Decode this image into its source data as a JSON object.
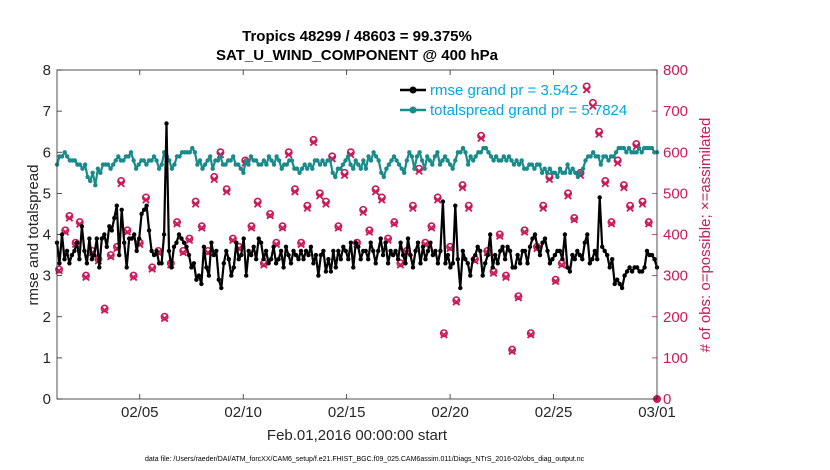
{
  "chart_data": {
    "type": "line",
    "title": "Tropics 48299 / 48603 = 99.375%",
    "subtitle": "SAT_U_WIND_COMPONENT @ 400 hPa",
    "xlabel": "Feb.01,2016 00:00:00 start",
    "ylabel": "rmse and totalspread",
    "y2label": "# of obs: o=possible; ×=assimilated",
    "footer": "data file: /Users/raeder/DAI/ATM_forcXX/CAM6_setup/f.e21.FHIST_BGC.f09_025.CAM6assim.011/Diags_NTrS_2016-02/obs_diag_output.nc",
    "xlim": [
      1,
      30
    ],
    "ylim": [
      0,
      8
    ],
    "y2lim": [
      0,
      800
    ],
    "xticks": [
      5,
      10,
      15,
      20,
      25,
      30
    ],
    "xtick_labels": [
      "02/05",
      "02/10",
      "02/15",
      "02/20",
      "02/25",
      "03/01"
    ],
    "yticks": [
      0,
      1,
      2,
      3,
      4,
      5,
      6,
      7,
      8
    ],
    "y2ticks": [
      0,
      100,
      200,
      300,
      400,
      500,
      600,
      700,
      800
    ],
    "legend_placement": "top-right",
    "series": [
      {
        "name": "rmse grand pr = 3.542",
        "color": "#000000",
        "role": "rmse",
        "values": [
          3.8,
          3.3,
          4.0,
          3.4,
          3.6,
          3.3,
          3.5,
          3.6,
          3.8,
          3.4,
          4.2,
          3.6,
          3.3,
          3.9,
          3.4,
          3.5,
          3.9,
          3.2,
          3.9,
          4.0,
          3.7,
          4.2,
          4.1,
          4.4,
          4.7,
          3.5,
          4.6,
          3.8,
          3.2,
          3.9,
          3.9,
          4.0,
          3.6,
          3.9,
          4.5,
          4.6,
          4.7,
          4.1,
          3.6,
          3.5,
          3.6,
          3.3,
          3.3,
          4.0,
          6.7,
          3.6,
          3.2,
          3.7,
          3.8,
          4.0,
          3.9,
          3.8,
          3.7,
          3.5,
          3.2,
          3.3,
          2.9,
          3.0,
          2.8,
          3.7,
          3.2,
          3.0,
          3.8,
          3.5,
          3.6,
          2.9,
          2.7,
          3.3,
          3.6,
          3.4,
          3.0,
          3.2,
          3.8,
          3.4,
          3.5,
          3.9,
          3.0,
          3.6,
          3.5,
          3.7,
          3.4,
          3.9,
          3.8,
          3.4,
          3.6,
          3.3,
          3.4,
          3.7,
          3.3,
          3.4,
          3.6,
          3.2,
          3.7,
          3.5,
          3.3,
          3.6,
          3.5,
          3.4,
          3.6,
          3.4,
          3.6,
          3.5,
          3.7,
          3.3,
          3.5,
          3.0,
          3.5,
          3.6,
          3.1,
          3.4,
          3.1,
          3.6,
          3.2,
          3.6,
          3.4,
          3.7,
          3.6,
          3.4,
          3.8,
          3.2,
          3.8,
          3.7,
          3.4,
          3.6,
          3.6,
          3.4,
          3.8,
          3.6,
          3.3,
          3.6,
          3.9,
          3.5,
          3.8,
          3.3,
          3.6,
          3.5,
          3.6,
          3.4,
          3.8,
          3.5,
          3.3,
          3.9,
          3.5,
          3.2,
          3.6,
          3.8,
          3.3,
          3.7,
          3.4,
          3.6,
          3.8,
          3.5,
          3.6,
          3.3,
          3.6,
          4.8,
          3.3,
          3.5,
          3.2,
          3.3,
          4.7,
          3.4,
          2.7,
          3.6,
          3.4,
          3.3,
          3.0,
          3.4,
          3.5,
          3.7,
          3.6,
          3.0,
          3.3,
          3.5,
          4.0,
          3.2,
          3.5,
          3.3,
          3.6,
          3.7,
          3.4,
          3.7,
          3.6,
          3.2,
          3.2,
          3.5,
          3.3,
          3.6,
          3.6,
          3.3,
          3.7,
          3.9,
          4.0,
          3.7,
          3.5,
          3.8,
          3.9,
          3.6,
          3.3,
          3.4,
          3.5,
          3.6,
          3.6,
          3.4,
          4.0,
          3.2,
          3.1,
          3.5,
          3.4,
          3.6,
          3.5,
          3.4,
          3.8,
          4.0,
          3.3,
          3.4,
          3.6,
          3.4,
          4.9,
          3.7,
          3.6,
          3.5,
          3.2,
          3.4,
          2.8,
          2.9,
          2.8,
          2.7,
          3.0,
          3.1,
          3.2,
          3.1,
          3.2,
          3.2,
          3.1,
          3.1,
          3.2,
          3.6,
          3.5,
          3.5,
          3.4,
          3.2
        ]
      },
      {
        "name": "totalspread grand pr = 5.7824",
        "color": "#1a8a8a",
        "role": "spread",
        "values": [
          5.7,
          5.9,
          5.9,
          6.0,
          5.9,
          5.8,
          5.8,
          5.8,
          5.7,
          5.7,
          5.6,
          5.7,
          5.4,
          5.3,
          5.5,
          5.2,
          5.6,
          5.5,
          5.7,
          5.7,
          5.7,
          5.6,
          5.7,
          5.8,
          5.9,
          5.8,
          5.8,
          5.9,
          5.9,
          6.0,
          5.8,
          5.6,
          5.7,
          5.8,
          5.8,
          5.7,
          5.8,
          5.8,
          5.9,
          5.8,
          5.6,
          5.7,
          6.0,
          5.9,
          5.8,
          5.6,
          5.7,
          5.9,
          5.9,
          6.0,
          6.0,
          6.0,
          6.0,
          6.1,
          6.0,
          5.7,
          5.8,
          5.6,
          5.7,
          5.8,
          5.9,
          5.6,
          5.8,
          5.8,
          5.9,
          5.7,
          5.7,
          5.8,
          5.8,
          5.9,
          5.7,
          5.7,
          5.6,
          5.5,
          5.8,
          5.7,
          5.9,
          5.8,
          5.8,
          5.7,
          5.7,
          5.8,
          5.7,
          5.9,
          5.8,
          5.7,
          5.9,
          5.8,
          5.6,
          5.7,
          5.7,
          5.8,
          5.8,
          5.6,
          5.6,
          5.5,
          5.6,
          5.7,
          5.6,
          5.7,
          5.6,
          5.8,
          5.8,
          5.7,
          5.8,
          5.7,
          5.8,
          5.8,
          5.5,
          5.4,
          5.6,
          5.6,
          5.7,
          5.8,
          5.9,
          5.7,
          5.6,
          5.8,
          5.7,
          5.6,
          5.8,
          5.6,
          5.9,
          5.8,
          6.0,
          5.9,
          5.8,
          5.5,
          5.4,
          5.6,
          5.7,
          5.8,
          5.9,
          5.8,
          5.7,
          5.6,
          5.5,
          5.8,
          6.0,
          5.9,
          5.6,
          5.9,
          6.0,
          5.8,
          5.6,
          5.9,
          5.8,
          5.7,
          5.9,
          6.0,
          5.7,
          5.8,
          5.9,
          5.8,
          5.7,
          5.6,
          5.8,
          6.0,
          6.0,
          6.1,
          6.0,
          5.7,
          5.9,
          5.8,
          5.9,
          6.0,
          6.0,
          6.1,
          6.1,
          6.0,
          5.9,
          5.8,
          5.9,
          5.8,
          5.8,
          5.9,
          5.8,
          5.9,
          5.8,
          5.7,
          5.8,
          5.7,
          5.8,
          5.6,
          5.6,
          5.7,
          5.7,
          5.6,
          5.7,
          5.7,
          5.5,
          5.6,
          5.5,
          5.6,
          5.5,
          5.5,
          5.4,
          5.6,
          5.5,
          5.5,
          5.7,
          5.5,
          5.6,
          5.5,
          5.4,
          5.5,
          5.6,
          5.8,
          5.9,
          5.9,
          6.0,
          5.9,
          5.9,
          5.7,
          5.9,
          5.9,
          5.8,
          5.9,
          5.9,
          6.0,
          6.1,
          6.1,
          6.1,
          6.0,
          6.1,
          6.0,
          6.0,
          6.0,
          6.1,
          6.0,
          6.1,
          6.1,
          6.1,
          6.1,
          6.0,
          6.0
        ]
      }
    ],
    "obs_possible": {
      "name": "possible",
      "color": "#c91a5a",
      "x": [
        1.1,
        1.4,
        1.6,
        1.9,
        2.1,
        2.4,
        2.7,
        3.0,
        3.3,
        3.6,
        3.9,
        4.1,
        4.4,
        4.7,
        5.0,
        5.3,
        5.6,
        5.9,
        6.2,
        6.5,
        6.8,
        7.1,
        7.4,
        7.7,
        8.0,
        8.3,
        8.6,
        8.9,
        9.2,
        9.5,
        9.8,
        10.1,
        10.4,
        10.7,
        11.0,
        11.3,
        11.6,
        11.9,
        12.2,
        12.5,
        12.8,
        13.1,
        13.4,
        13.7,
        14.0,
        14.3,
        14.6,
        14.9,
        15.2,
        15.5,
        15.8,
        16.1,
        16.4,
        16.7,
        17.0,
        17.3,
        17.6,
        17.9,
        18.2,
        18.5,
        18.8,
        19.1,
        19.4,
        19.7,
        20.0,
        20.3,
        20.6,
        20.9,
        21.2,
        21.5,
        21.8,
        22.1,
        22.4,
        22.7,
        23.0,
        23.3,
        23.6,
        23.9,
        24.2,
        24.5,
        24.8,
        25.1,
        25.4,
        25.7,
        26.0,
        26.3,
        26.6,
        26.9,
        27.2,
        27.5,
        27.8,
        28.1,
        28.4,
        28.7,
        29.0,
        29.3,
        29.6
      ],
      "counts": [
        315,
        410,
        445,
        380,
        430,
        300,
        360,
        340,
        220,
        350,
        370,
        530,
        410,
        300,
        380,
        490,
        320,
        360,
        200,
        330,
        430,
        360,
        390,
        480,
        420,
        360,
        540,
        600,
        510,
        390,
        370,
        580,
        420,
        480,
        330,
        450,
        380,
        420,
        600,
        510,
        380,
        470,
        630,
        500,
        480,
        590,
        420,
        550,
        600,
        380,
        460,
        410,
        510,
        490,
        390,
        430,
        330,
        360,
        470,
        560,
        380,
        420,
        490,
        160,
        370,
        240,
        520,
        470,
        340,
        640,
        360,
        310,
        400,
        300,
        120,
        250,
        410,
        160,
        370,
        470,
        540,
        290,
        330,
        500,
        440,
        550,
        760,
        720,
        650,
        530,
        430,
        580,
        520,
        470,
        620,
        480,
        430
      ]
    },
    "obs_assimilated": {
      "name": "assimilated",
      "color": "#c91a5a",
      "x": [
        1.1,
        1.4,
        1.6,
        1.9,
        2.1,
        2.4,
        2.7,
        3.0,
        3.3,
        3.6,
        3.9,
        4.1,
        4.4,
        4.7,
        5.0,
        5.3,
        5.6,
        5.9,
        6.2,
        6.5,
        6.8,
        7.1,
        7.4,
        7.7,
        8.0,
        8.3,
        8.6,
        8.9,
        9.2,
        9.5,
        9.8,
        10.1,
        10.4,
        10.7,
        11.0,
        11.3,
        11.6,
        11.9,
        12.2,
        12.5,
        12.8,
        13.1,
        13.4,
        13.7,
        14.0,
        14.3,
        14.6,
        14.9,
        15.2,
        15.5,
        15.8,
        16.1,
        16.4,
        16.7,
        17.0,
        17.3,
        17.6,
        17.9,
        18.2,
        18.5,
        18.8,
        19.1,
        19.4,
        19.7,
        20.0,
        20.3,
        20.6,
        20.9,
        21.2,
        21.5,
        21.8,
        22.1,
        22.4,
        22.7,
        23.0,
        23.3,
        23.6,
        23.9,
        24.2,
        24.5,
        24.8,
        25.1,
        25.4,
        25.7,
        26.0,
        26.3,
        26.6,
        26.9,
        27.2,
        27.5,
        27.8,
        28.1,
        28.4,
        28.7,
        29.0,
        29.3,
        29.6
      ],
      "counts": [
        312,
        406,
        440,
        376,
        425,
        296,
        356,
        336,
        216,
        346,
        366,
        524,
        406,
        296,
        376,
        484,
        316,
        356,
        196,
        326,
        426,
        356,
        386,
        474,
        416,
        356,
        534,
        594,
        504,
        386,
        366,
        574,
        416,
        474,
        326,
        446,
        376,
        416,
        594,
        504,
        376,
        464,
        624,
        494,
        474,
        584,
        416,
        544,
        594,
        376,
        454,
        406,
        504,
        484,
        386,
        426,
        326,
        356,
        464,
        554,
        376,
        416,
        484,
        156,
        366,
        236,
        514,
        464,
        336,
        634,
        356,
        306,
        396,
        296,
        116,
        246,
        406,
        156,
        366,
        464,
        534,
        286,
        326,
        494,
        436,
        544,
        752,
        712,
        644,
        524,
        426,
        574,
        514,
        464,
        614,
        474,
        426
      ]
    },
    "end_marker": {
      "x": 30,
      "count": 0
    }
  }
}
